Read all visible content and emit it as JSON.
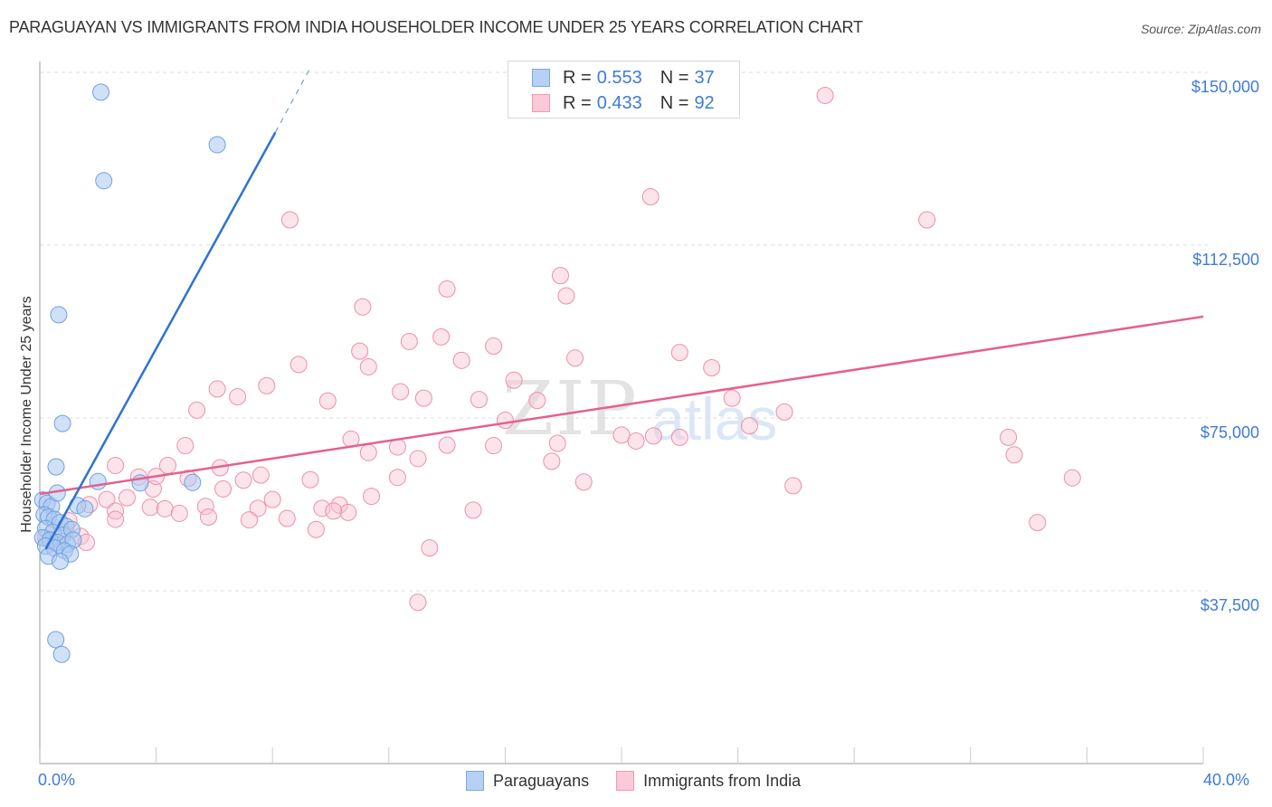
{
  "header": {
    "title": "PARAGUAYAN VS IMMIGRANTS FROM INDIA HOUSEHOLDER INCOME UNDER 25 YEARS CORRELATION CHART",
    "source": "Source: ZipAtlas.com"
  },
  "watermark": {
    "zip": "ZIP",
    "atlas": "atlas"
  },
  "legend": {
    "series": [
      {
        "r_label": "R =",
        "r_value": "0.553",
        "n_label": "N =",
        "n_value": "37",
        "color": "#a9c8f0",
        "border": "#6f9fe0"
      },
      {
        "r_label": "R =",
        "r_value": "0.433",
        "n_label": "N =",
        "n_value": "92",
        "color": "#f9c3d3",
        "border": "#ec8fab"
      }
    ]
  },
  "bottom_legend": {
    "items": [
      {
        "label": "Paraguayans"
      },
      {
        "label": "Immigrants from India"
      }
    ]
  },
  "axes": {
    "y_title": "Householder Income Under 25 years",
    "y_ticks": [
      "$150,000",
      "$112,500",
      "$75,000",
      "$37,500"
    ],
    "x_ticks": [
      "0.0%",
      "40.0%"
    ]
  },
  "chart_data": {
    "type": "scatter",
    "title": "PARAGUAYAN VS IMMIGRANTS FROM INDIA HOUSEHOLDER INCOME UNDER 25 YEARS CORRELATION CHART",
    "xlabel": "",
    "ylabel": "Householder Income Under 25 years",
    "xlim": [
      0,
      40
    ],
    "ylim": [
      0,
      155000
    ],
    "x_unit": "%",
    "y_gridlines": [
      37500,
      75000,
      112500,
      150000
    ],
    "legend_position": "top-center",
    "series": [
      {
        "name": "Paraguayans",
        "color": "#6f9fe0",
        "R": 0.553,
        "N": 37,
        "trendline": {
          "x": [
            0.2,
            8.1
          ],
          "y": [
            46500,
            137000
          ],
          "dashed_extension_to": [
            9.3,
            151000
          ]
        },
        "points": [
          [
            2.1,
            145700
          ],
          [
            2.2,
            126500
          ],
          [
            6.1,
            134300
          ],
          [
            0.65,
            97400
          ],
          [
            0.78,
            73800
          ],
          [
            0.56,
            64400
          ],
          [
            2.0,
            61200
          ],
          [
            3.45,
            60900
          ],
          [
            5.25,
            61000
          ],
          [
            0.1,
            57200
          ],
          [
            0.25,
            56500
          ],
          [
            0.4,
            55800
          ],
          [
            0.6,
            58700
          ],
          [
            1.3,
            56000
          ],
          [
            1.55,
            55300
          ],
          [
            0.15,
            54000
          ],
          [
            0.3,
            53500
          ],
          [
            0.5,
            53000
          ],
          [
            0.7,
            52300
          ],
          [
            0.9,
            51500
          ],
          [
            0.2,
            51000
          ],
          [
            0.45,
            50200
          ],
          [
            0.8,
            49600
          ],
          [
            1.1,
            50800
          ],
          [
            0.1,
            49000
          ],
          [
            0.35,
            48500
          ],
          [
            0.6,
            48000
          ],
          [
            0.95,
            47600
          ],
          [
            1.15,
            48500
          ],
          [
            0.2,
            47200
          ],
          [
            0.5,
            46800
          ],
          [
            0.85,
            46200
          ],
          [
            1.05,
            45500
          ],
          [
            0.3,
            45000
          ],
          [
            0.7,
            43900
          ],
          [
            0.55,
            26900
          ],
          [
            0.75,
            23700
          ]
        ]
      },
      {
        "name": "Immigrants from India",
        "color": "#ec8fab",
        "R": 0.433,
        "N": 92,
        "trendline": {
          "x": [
            0.0,
            40.0
          ],
          "y": [
            58500,
            97000
          ]
        },
        "points": [
          [
            27.0,
            145000
          ],
          [
            21.0,
            123000
          ],
          [
            30.5,
            118000
          ],
          [
            8.6,
            118000
          ],
          [
            14.0,
            103000
          ],
          [
            18.1,
            101500
          ],
          [
            17.9,
            105900
          ],
          [
            11.1,
            99100
          ],
          [
            12.7,
            91600
          ],
          [
            15.6,
            90600
          ],
          [
            11.0,
            89500
          ],
          [
            14.5,
            87500
          ],
          [
            8.9,
            86600
          ],
          [
            18.4,
            88000
          ],
          [
            22.0,
            89200
          ],
          [
            23.1,
            85900
          ],
          [
            11.3,
            86100
          ],
          [
            13.8,
            92600
          ],
          [
            16.3,
            83200
          ],
          [
            7.8,
            82000
          ],
          [
            6.1,
            81300
          ],
          [
            12.4,
            80700
          ],
          [
            13.2,
            79300
          ],
          [
            15.1,
            79000
          ],
          [
            9.9,
            78700
          ],
          [
            6.8,
            79600
          ],
          [
            17.1,
            78800
          ],
          [
            23.8,
            79300
          ],
          [
            25.6,
            76300
          ],
          [
            5.4,
            76700
          ],
          [
            20.5,
            70000
          ],
          [
            16.0,
            74500
          ],
          [
            24.4,
            73300
          ],
          [
            21.1,
            71100
          ],
          [
            22.0,
            70800
          ],
          [
            20.0,
            71300
          ],
          [
            10.7,
            70400
          ],
          [
            14.0,
            69100
          ],
          [
            15.6,
            69000
          ],
          [
            33.3,
            70800
          ],
          [
            33.5,
            67000
          ],
          [
            5.0,
            69000
          ],
          [
            12.3,
            68700
          ],
          [
            11.3,
            67500
          ],
          [
            17.8,
            69500
          ],
          [
            13.0,
            66200
          ],
          [
            17.6,
            65600
          ],
          [
            4.4,
            64700
          ],
          [
            6.2,
            64200
          ],
          [
            7.6,
            62600
          ],
          [
            9.3,
            61600
          ],
          [
            5.1,
            61900
          ],
          [
            7.0,
            61500
          ],
          [
            12.3,
            62100
          ],
          [
            18.7,
            61100
          ],
          [
            25.9,
            60300
          ],
          [
            35.5,
            62000
          ],
          [
            2.6,
            64700
          ],
          [
            3.4,
            62200
          ],
          [
            3.9,
            59600
          ],
          [
            4.0,
            62300
          ],
          [
            6.3,
            59600
          ],
          [
            3.0,
            57700
          ],
          [
            3.8,
            55600
          ],
          [
            1.7,
            56200
          ],
          [
            2.3,
            57300
          ],
          [
            2.6,
            54800
          ],
          [
            8.0,
            57300
          ],
          [
            9.7,
            55400
          ],
          [
            10.3,
            56100
          ],
          [
            10.6,
            54500
          ],
          [
            5.7,
            55800
          ],
          [
            7.5,
            55400
          ],
          [
            4.3,
            55300
          ],
          [
            4.8,
            54300
          ],
          [
            14.9,
            55000
          ],
          [
            11.4,
            58000
          ],
          [
            8.5,
            53200
          ],
          [
            7.2,
            52900
          ],
          [
            5.8,
            53500
          ],
          [
            2.6,
            53000
          ],
          [
            9.5,
            50800
          ],
          [
            10.1,
            54800
          ],
          [
            34.3,
            52300
          ],
          [
            1.0,
            52700
          ],
          [
            0.8,
            50100
          ],
          [
            0.5,
            47800
          ],
          [
            1.4,
            49300
          ],
          [
            13.4,
            46800
          ],
          [
            13.0,
            35000
          ],
          [
            0.2,
            48900
          ],
          [
            1.6,
            48000
          ]
        ]
      }
    ]
  }
}
